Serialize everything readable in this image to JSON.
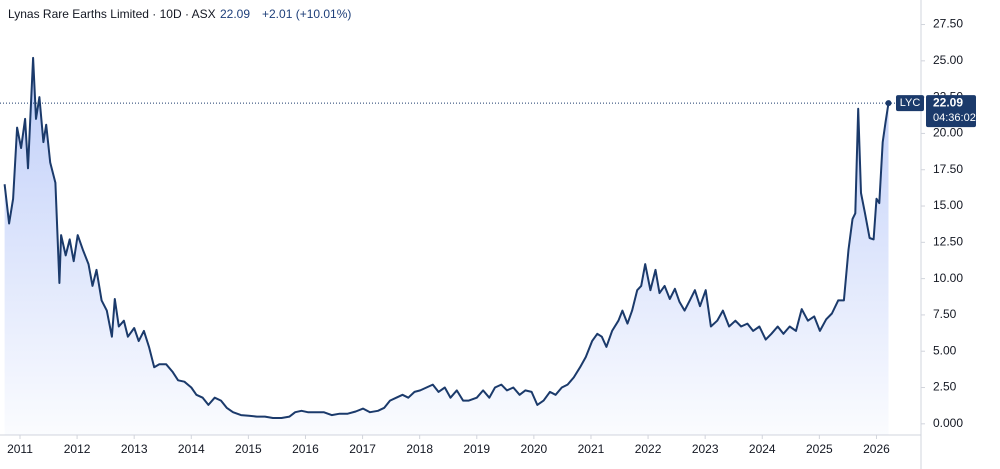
{
  "chart_data": {
    "type": "area",
    "title": "Lynas Rare Earths Limited · 10D · ASX",
    "symbol": "LYC",
    "last_price": 22.09,
    "change": "+2.01 (+10.01%)",
    "countdown": "04:36:02",
    "color": "#1b3a6b",
    "fill_color": "#a9bdf7",
    "x": [
      2010.73,
      2010.81,
      2010.88,
      2010.95,
      2011.02,
      2011.09,
      2011.14,
      2011.23,
      2011.28,
      2011.34,
      2011.41,
      2011.46,
      2011.53,
      2011.62,
      2011.69,
      2011.72,
      2011.8,
      2011.87,
      2011.94,
      2012.01,
      2012.1,
      2012.2,
      2012.27,
      2012.34,
      2012.43,
      2012.52,
      2012.61,
      2012.66,
      2012.73,
      2012.82,
      2012.89,
      2013.0,
      2013.08,
      2013.17,
      2013.26,
      2013.35,
      2013.44,
      2013.56,
      2013.67,
      2013.77,
      2013.88,
      2014.0,
      2014.09,
      2014.2,
      2014.3,
      2014.41,
      2014.52,
      2014.62,
      2014.73,
      2014.87,
      2015.01,
      2015.15,
      2015.29,
      2015.43,
      2015.58,
      2015.72,
      2015.82,
      2015.93,
      2016.04,
      2016.18,
      2016.32,
      2016.46,
      2016.6,
      2016.74,
      2016.88,
      2017.01,
      2017.13,
      2017.27,
      2017.38,
      2017.48,
      2017.59,
      2017.7,
      2017.8,
      2017.91,
      2018.01,
      2018.12,
      2018.23,
      2018.33,
      2018.44,
      2018.54,
      2018.65,
      2018.76,
      2018.86,
      2019.0,
      2019.11,
      2019.22,
      2019.32,
      2019.43,
      2019.53,
      2019.64,
      2019.75,
      2019.85,
      2019.96,
      2020.06,
      2020.17,
      2020.28,
      2020.38,
      2020.49,
      2020.59,
      2020.7,
      2020.81,
      2020.91,
      2021.02,
      2021.11,
      2021.19,
      2021.27,
      2021.37,
      2021.48,
      2021.55,
      2021.64,
      2021.72,
      2021.81,
      2021.88,
      2021.95,
      2022.04,
      2022.13,
      2022.2,
      2022.29,
      2022.38,
      2022.47,
      2022.55,
      2022.64,
      2022.73,
      2022.82,
      2022.91,
      2023.01,
      2023.1,
      2023.21,
      2023.31,
      2023.42,
      2023.53,
      2023.63,
      2023.74,
      2023.84,
      2023.95,
      2024.06,
      2024.16,
      2024.27,
      2024.37,
      2024.48,
      2024.59,
      2024.69,
      2024.8,
      2024.91,
      2025.01,
      2025.12,
      2025.22,
      2025.33,
      2025.43,
      2025.51,
      2025.58,
      2025.63,
      2025.68,
      2025.73,
      2025.8,
      2025.88,
      2025.95,
      2026.0,
      2026.05,
      2026.11,
      2026.16,
      2026.21
    ],
    "values": [
      16.5,
      13.8,
      15.5,
      20.4,
      19,
      21,
      17.6,
      25.2,
      21,
      22.5,
      19.4,
      20.6,
      18,
      16.6,
      9.7,
      13,
      11.6,
      12.7,
      11.2,
      13,
      12,
      11,
      9.5,
      10.6,
      8.5,
      7.8,
      6,
      8.6,
      6.7,
      7.1,
      6,
      6.6,
      5.7,
      6.4,
      5.3,
      3.9,
      4.1,
      4.1,
      3.6,
      3,
      2.9,
      2.5,
      2,
      1.8,
      1.3,
      1.8,
      1.6,
      1.1,
      0.8,
      0.6,
      0.55,
      0.5,
      0.5,
      0.4,
      0.4,
      0.5,
      0.8,
      0.9,
      0.8,
      0.8,
      0.8,
      0.6,
      0.7,
      0.7,
      0.85,
      1.05,
      0.8,
      0.9,
      1.1,
      1.6,
      1.8,
      2,
      1.8,
      2.2,
      2.3,
      2.5,
      2.7,
      2.2,
      2.5,
      1.8,
      2.3,
      1.6,
      1.6,
      1.8,
      2.3,
      1.8,
      2.5,
      2.7,
      2.3,
      2.5,
      2,
      2.3,
      2.2,
      1.3,
      1.6,
      2.2,
      2,
      2.5,
      2.7,
      3.2,
      3.9,
      4.6,
      5.7,
      6.2,
      6,
      5.3,
      6.4,
      7.1,
      7.8,
      6.9,
      7.8,
      9.2,
      9.5,
      11,
      9.2,
      10.6,
      9,
      9.5,
      8.6,
      9.3,
      8.4,
      7.8,
      8.5,
      9.2,
      8.1,
      9.2,
      6.7,
      7.1,
      7.8,
      6.7,
      7.1,
      6.7,
      6.9,
      6.4,
      6.7,
      5.8,
      6.2,
      6.7,
      6.2,
      6.7,
      6.4,
      7.9,
      7.1,
      7.4,
      6.4,
      7.2,
      7.6,
      8.5,
      8.5,
      12,
      14.1,
      14.5,
      21.7,
      15.9,
      14.5,
      12.8,
      12.7,
      15.5,
      15.2,
      19.4,
      20.8,
      22.09
    ],
    "xlim": [
      2010.65,
      2026.78
    ],
    "ylim": [
      -0.77,
      29.19
    ],
    "xticks": [
      2011,
      2012,
      2013,
      2014,
      2015,
      2016,
      2017,
      2018,
      2019,
      2020,
      2021,
      2022,
      2023,
      2024,
      2025,
      2026
    ],
    "yticks": [
      {
        "value": 0,
        "label": "0.000"
      },
      {
        "value": 2.5,
        "label": "2.50"
      },
      {
        "value": 5,
        "label": "5.00"
      },
      {
        "value": 7.5,
        "label": "7.50"
      },
      {
        "value": 10,
        "label": "10.00"
      },
      {
        "value": 12.5,
        "label": "12.50"
      },
      {
        "value": 15,
        "label": "15.00"
      },
      {
        "value": 17.5,
        "label": "17.50"
      },
      {
        "value": 20,
        "label": "20.00"
      },
      {
        "value": 22.5,
        "label": "22.50"
      },
      {
        "value": 25,
        "label": "25.00"
      },
      {
        "value": 27.5,
        "label": "27.50"
      }
    ]
  }
}
